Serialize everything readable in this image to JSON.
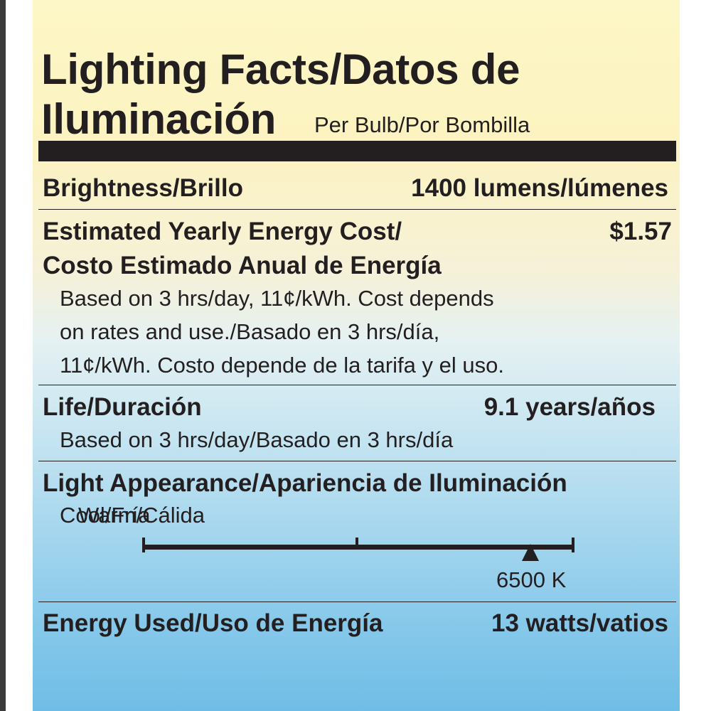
{
  "title": {
    "line1": "Lighting Facts/Datos de",
    "line2": "Iluminación",
    "per_bulb": "Per Bulb/Por Bombilla"
  },
  "brightness": {
    "label": "Brightness/Brillo",
    "value": "1400 lumens/lúmenes"
  },
  "energy_cost": {
    "label_line1": "Estimated Yearly Energy Cost/",
    "label_line2": "Costo Estimado Anual de Energía",
    "value": "$1.57",
    "note_lines": [
      "Based on 3 hrs/day, 11¢/kWh. Cost depends",
      "on rates and use./Basado en 3 hrs/día,",
      "11¢/kWh. Costo depende de la tarifa y el uso."
    ]
  },
  "life": {
    "label": "Life/Duración",
    "value": "9.1 years/años",
    "note": "Based on 3 hrs/day/Basado en 3 hrs/día"
  },
  "appearance": {
    "label": "Light Appearance/Apariencia de Iluminación",
    "warm_label": "Warm/Cálida",
    "cool_label": "Cool/Fría",
    "value_label": "6500 K",
    "scale_position": 0.9
  },
  "energy_used": {
    "label": "Energy Used/Uso de Energía",
    "value": "13 watts/vatios"
  }
}
